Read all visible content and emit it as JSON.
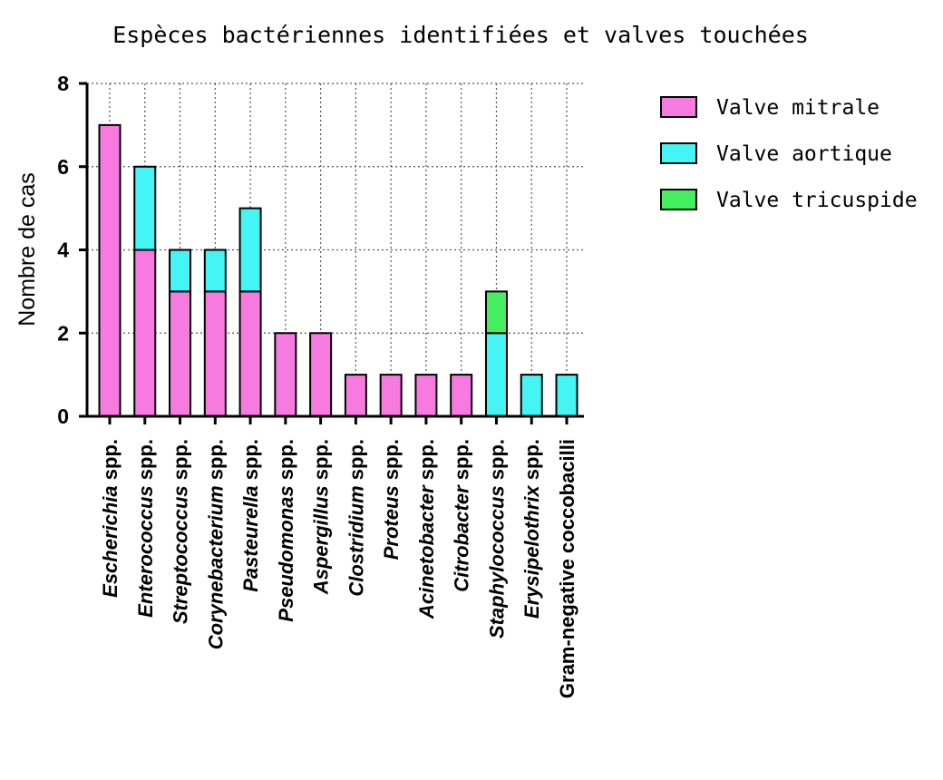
{
  "chart_data": {
    "type": "bar",
    "stacked": true,
    "title": "Espèces bactériennes identifiées et valves touchées",
    "ylabel": "Nombre de cas",
    "ylim": [
      0,
      8
    ],
    "yticks": [
      0,
      2,
      4,
      6,
      8
    ],
    "grid": true,
    "legend_position": "right",
    "categories": [
      {
        "name": "Escherichia",
        "suffix": "spp."
      },
      {
        "name": "Enterococcus",
        "suffix": "spp."
      },
      {
        "name": "Streptococcus",
        "suffix": "spp."
      },
      {
        "name": "Corynebacterium",
        "suffix": "spp."
      },
      {
        "name": "Pasteurella",
        "suffix": "spp."
      },
      {
        "name": "Pseudomonas",
        "suffix": "spp."
      },
      {
        "name": "Aspergillus",
        "suffix": "spp."
      },
      {
        "name": "Clostridium",
        "suffix": "spp."
      },
      {
        "name": "Proteus",
        "suffix": "spp."
      },
      {
        "name": "Acinetobacter",
        "suffix": "spp."
      },
      {
        "name": "Citrobacter",
        "suffix": "spp."
      },
      {
        "name": "Staphylococcus",
        "suffix": "spp."
      },
      {
        "name": "Erysipelothrix",
        "suffix": "spp."
      },
      {
        "name": "Gram-negative coccobacilli",
        "suffix": ""
      }
    ],
    "series": [
      {
        "name": "Valve mitrale",
        "color": "#f77ae0",
        "values": [
          7,
          4,
          3,
          3,
          3,
          2,
          2,
          1,
          1,
          1,
          1,
          0,
          0,
          0
        ]
      },
      {
        "name": "Valve aortique",
        "color": "#45f5f5",
        "values": [
          0,
          2,
          1,
          1,
          2,
          0,
          0,
          0,
          0,
          0,
          0,
          2,
          1,
          1
        ]
      },
      {
        "name": "Valve tricuspide",
        "color": "#45ef5f",
        "values": [
          0,
          0,
          0,
          0,
          0,
          0,
          0,
          0,
          0,
          0,
          0,
          1,
          0,
          0
        ]
      }
    ]
  }
}
